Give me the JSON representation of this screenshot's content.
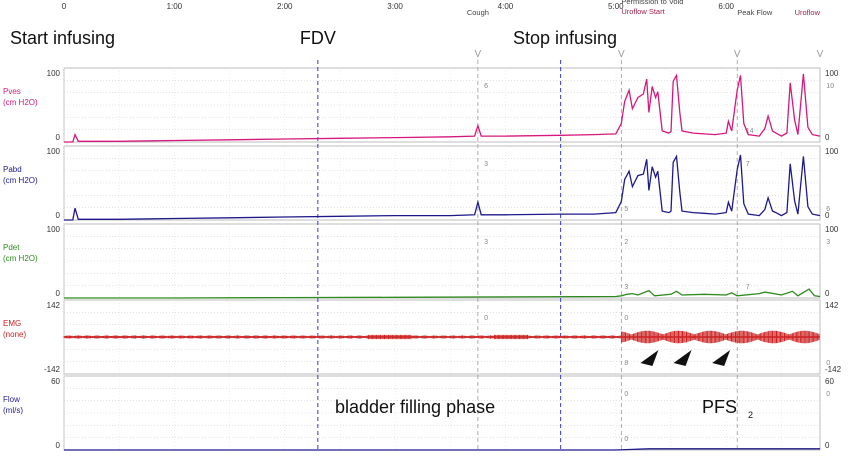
{
  "chart_data": {
    "type": "line",
    "time_ticks": [
      "0",
      "1:00",
      "2:00",
      "3:00",
      "4:00",
      "5:00",
      "6:00"
    ],
    "time_tick_minutes": [
      0,
      1,
      2,
      3,
      4,
      5,
      6
    ],
    "time_range_minutes": [
      0,
      6.85
    ],
    "event_markers": [
      {
        "label": "Cough",
        "t": 3.75,
        "color": "#444444"
      },
      {
        "label": "Permission to Void",
        "t": 5.05,
        "color": "#444444"
      },
      {
        "label": "Uroflow Start",
        "t": 5.05,
        "color": "#a0224e"
      },
      {
        "label": "Peak Flow",
        "t": 6.1,
        "color": "#444444"
      },
      {
        "label": "Uroflow",
        "t": 6.85,
        "color": "#a0224e"
      }
    ],
    "annotations": {
      "start_infusing": "Start infusing",
      "fdv": "FDV",
      "stop_infusing": "Stop infusing",
      "filling_phase": "bladder filling phase",
      "pfs": "PFS",
      "pfs_sub": "2"
    },
    "dashed_lines_minutes": [
      2.3,
      4.5
    ],
    "channels": [
      {
        "name": "Pves",
        "unit": "(cm H2O)",
        "color": "#d6187e",
        "ymin": 0,
        "ymax": 100,
        "left_top": "100",
        "left_bottom": "0",
        "right_top": "100",
        "right_bottom": "0",
        "inline_labels": [
          {
            "t": 3.78,
            "text": "6"
          },
          {
            "t": 6.15,
            "text": "14"
          },
          {
            "t": 6.88,
            "text": "10"
          }
        ]
      },
      {
        "name": "Pabd",
        "unit": "(cm H2O)",
        "color": "#1e1a8a",
        "ymin": 0,
        "ymax": 100,
        "left_top": "100",
        "left_bottom": "0",
        "right_top": "100",
        "right_bottom": "0",
        "inline_labels": [
          {
            "t": 3.78,
            "text": "3"
          },
          {
            "t": 5.05,
            "text": "5"
          },
          {
            "t": 6.15,
            "text": "7"
          },
          {
            "t": 6.88,
            "text": "6"
          }
        ]
      },
      {
        "name": "Pdet",
        "unit": "(cm H2O)",
        "color": "#2e8a1c",
        "ymin": 0,
        "ymax": 100,
        "left_top": "100",
        "left_bottom": "0",
        "right_top": "100",
        "right_bottom": "0",
        "inline_labels": [
          {
            "t": 3.78,
            "text": "3"
          },
          {
            "t": 5.05,
            "text": "3"
          },
          {
            "t": 5.05,
            "text": "2"
          },
          {
            "t": 6.15,
            "text": "7"
          },
          {
            "t": 6.88,
            "text": "3"
          }
        ]
      },
      {
        "name": "EMG",
        "unit": "(none)",
        "color": "#cc2222",
        "ymin": -142,
        "ymax": 142,
        "left_top": "142",
        "left_bottom": "-142",
        "right_top": "142",
        "right_bottom": "-142",
        "inline_labels": [
          {
            "t": 3.78,
            "text": "0"
          },
          {
            "t": 5.05,
            "text": "8"
          },
          {
            "t": 5.05,
            "text": "0"
          },
          {
            "t": 6.88,
            "text": "0"
          }
        ]
      },
      {
        "name": "Flow",
        "unit": "(ml/s)",
        "color": "#1e1a8a",
        "ymin": 0,
        "ymax": 60,
        "left_top": "60",
        "left_bottom": "0",
        "right_top": "60",
        "right_bottom": "0",
        "inline_labels": [
          {
            "t": 5.05,
            "text": "0"
          },
          {
            "t": 5.05,
            "text": "0"
          },
          {
            "t": 6.88,
            "text": "0"
          }
        ]
      }
    ],
    "emg_arrowheads_minutes": [
      5.35,
      5.65,
      6.0
    ],
    "series": [
      {
        "channel": "Pves",
        "points": [
          [
            0,
            0
          ],
          [
            0.08,
            0
          ],
          [
            0.1,
            10
          ],
          [
            0.13,
            1
          ],
          [
            0.5,
            1
          ],
          [
            1,
            2
          ],
          [
            1.5,
            3
          ],
          [
            2,
            4
          ],
          [
            2.5,
            5
          ],
          [
            3,
            6
          ],
          [
            3.5,
            7
          ],
          [
            3.72,
            8
          ],
          [
            3.75,
            22
          ],
          [
            3.78,
            8
          ],
          [
            4,
            8
          ],
          [
            4.5,
            9
          ],
          [
            4.8,
            10
          ],
          [
            5.0,
            11
          ],
          [
            5.05,
            25
          ],
          [
            5.08,
            55
          ],
          [
            5.12,
            70
          ],
          [
            5.15,
            45
          ],
          [
            5.2,
            60
          ],
          [
            5.25,
            65
          ],
          [
            5.28,
            85
          ],
          [
            5.3,
            40
          ],
          [
            5.33,
            75
          ],
          [
            5.36,
            60
          ],
          [
            5.38,
            68
          ],
          [
            5.42,
            15
          ],
          [
            5.48,
            12
          ],
          [
            5.5,
            14
          ],
          [
            5.52,
            82
          ],
          [
            5.55,
            90
          ],
          [
            5.58,
            40
          ],
          [
            5.6,
            15
          ],
          [
            5.7,
            12
          ],
          [
            5.8,
            11
          ],
          [
            5.9,
            10
          ],
          [
            6.0,
            12
          ],
          [
            6.02,
            28
          ],
          [
            6.05,
            15
          ],
          [
            6.1,
            70
          ],
          [
            6.13,
            90
          ],
          [
            6.16,
            25
          ],
          [
            6.2,
            10
          ],
          [
            6.3,
            8
          ],
          [
            6.35,
            18
          ],
          [
            6.38,
            35
          ],
          [
            6.42,
            15
          ],
          [
            6.45,
            12
          ],
          [
            6.5,
            8
          ],
          [
            6.55,
            12
          ],
          [
            6.58,
            80
          ],
          [
            6.62,
            30
          ],
          [
            6.65,
            10
          ],
          [
            6.7,
            92
          ],
          [
            6.74,
            20
          ],
          [
            6.78,
            10
          ],
          [
            6.85,
            8
          ]
        ]
      },
      {
        "channel": "Pabd",
        "points": [
          [
            0,
            0
          ],
          [
            0.08,
            0
          ],
          [
            0.1,
            16
          ],
          [
            0.13,
            1
          ],
          [
            0.5,
            1
          ],
          [
            1,
            2
          ],
          [
            1.5,
            3
          ],
          [
            2,
            4
          ],
          [
            2.5,
            5
          ],
          [
            3,
            6
          ],
          [
            3.5,
            6
          ],
          [
            3.72,
            7
          ],
          [
            3.75,
            24
          ],
          [
            3.78,
            7
          ],
          [
            4,
            7
          ],
          [
            4.5,
            8
          ],
          [
            4.8,
            8
          ],
          [
            5.0,
            10
          ],
          [
            5.05,
            25
          ],
          [
            5.08,
            55
          ],
          [
            5.12,
            66
          ],
          [
            5.15,
            45
          ],
          [
            5.2,
            60
          ],
          [
            5.25,
            62
          ],
          [
            5.28,
            82
          ],
          [
            5.3,
            40
          ],
          [
            5.33,
            72
          ],
          [
            5.36,
            58
          ],
          [
            5.38,
            66
          ],
          [
            5.42,
            12
          ],
          [
            5.48,
            10
          ],
          [
            5.5,
            12
          ],
          [
            5.52,
            78
          ],
          [
            5.55,
            86
          ],
          [
            5.58,
            38
          ],
          [
            5.6,
            12
          ],
          [
            5.7,
            10
          ],
          [
            5.8,
            9
          ],
          [
            5.9,
            8
          ],
          [
            6.0,
            10
          ],
          [
            6.02,
            24
          ],
          [
            6.05,
            12
          ],
          [
            6.1,
            68
          ],
          [
            6.13,
            88
          ],
          [
            6.16,
            22
          ],
          [
            6.2,
            8
          ],
          [
            6.3,
            6
          ],
          [
            6.35,
            14
          ],
          [
            6.38,
            30
          ],
          [
            6.42,
            12
          ],
          [
            6.45,
            10
          ],
          [
            6.5,
            6
          ],
          [
            6.55,
            10
          ],
          [
            6.58,
            76
          ],
          [
            6.62,
            26
          ],
          [
            6.65,
            8
          ],
          [
            6.7,
            86
          ],
          [
            6.74,
            18
          ],
          [
            6.78,
            8
          ],
          [
            6.85,
            6
          ]
        ]
      },
      {
        "channel": "Pdet",
        "points": [
          [
            0,
            0
          ],
          [
            1,
            0
          ],
          [
            2,
            0.5
          ],
          [
            3,
            1
          ],
          [
            4,
            1.5
          ],
          [
            5,
            2
          ],
          [
            5.05,
            3
          ],
          [
            5.1,
            5
          ],
          [
            5.15,
            6
          ],
          [
            5.2,
            4
          ],
          [
            5.3,
            10
          ],
          [
            5.35,
            3
          ],
          [
            5.5,
            5
          ],
          [
            5.55,
            9
          ],
          [
            5.6,
            4
          ],
          [
            5.8,
            5
          ],
          [
            6.0,
            4
          ],
          [
            6.05,
            7
          ],
          [
            6.1,
            3
          ],
          [
            6.3,
            6
          ],
          [
            6.35,
            8
          ],
          [
            6.5,
            4
          ],
          [
            6.6,
            9
          ],
          [
            6.65,
            3
          ],
          [
            6.75,
            12
          ],
          [
            6.8,
            3
          ],
          [
            6.85,
            2
          ]
        ]
      },
      {
        "channel": "EMG",
        "points": [
          [
            0,
            0
          ],
          [
            6.85,
            0
          ]
        ]
      },
      {
        "channel": "Flow",
        "points": [
          [
            0,
            0
          ],
          [
            5.0,
            0
          ],
          [
            5.3,
            1
          ],
          [
            6.0,
            1
          ],
          [
            6.85,
            1
          ]
        ]
      }
    ]
  }
}
